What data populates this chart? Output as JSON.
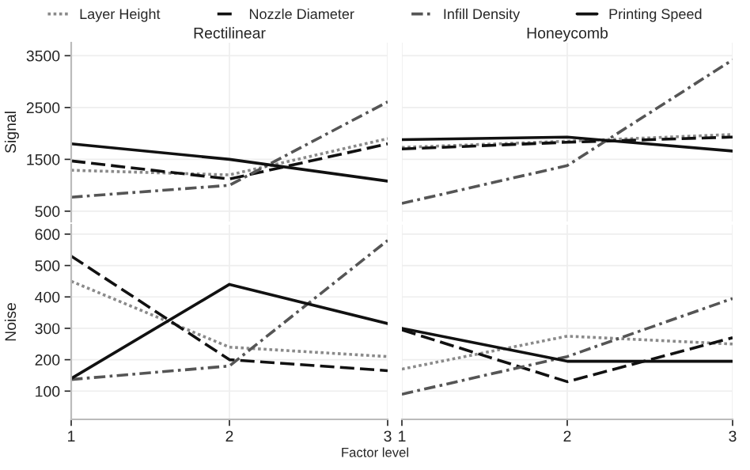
{
  "chart_data": [
    {
      "type": "line",
      "title": "Rectilinear",
      "ylabel": "Signal",
      "x": [
        1,
        2,
        3
      ],
      "xlim": [
        1,
        3
      ],
      "xticks": [
        1,
        2,
        3
      ],
      "ylim": [
        300,
        3750
      ],
      "yticks": [
        500,
        1500,
        2500,
        3500
      ],
      "grid": true,
      "legend": "top",
      "tick_labels": "y",
      "series": [
        {
          "name": "Layer Height",
          "color": "#8a8a8a",
          "line_style": "dotted",
          "values": [
            1290,
            1200,
            1900
          ]
        },
        {
          "name": "Nozzle Diameter",
          "color": "#111111",
          "line_style": "dashed",
          "values": [
            1470,
            1120,
            1800
          ]
        },
        {
          "name": "Infill Density",
          "color": "#555555",
          "line_style": "dashdot",
          "values": [
            770,
            1000,
            2610
          ]
        },
        {
          "name": "Printing Speed",
          "color": "#111111",
          "line_style": "solid",
          "values": [
            1800,
            1500,
            1080
          ]
        }
      ]
    },
    {
      "type": "line",
      "title": "Honeycomb",
      "x": [
        1,
        2,
        3
      ],
      "xlim": [
        1,
        3
      ],
      "xticks": [
        1,
        2,
        3
      ],
      "ylim": [
        300,
        3750
      ],
      "yticks": [
        500,
        1500,
        2500,
        3500
      ],
      "grid": true,
      "tick_labels": false,
      "series": [
        {
          "color": "#8a8a8a",
          "line_style": "dotted",
          "values": [
            1730,
            1850,
            1980
          ]
        },
        {
          "color": "#111111",
          "line_style": "dashed",
          "values": [
            1700,
            1830,
            1930
          ]
        },
        {
          "color": "#555555",
          "line_style": "dashdot",
          "values": [
            650,
            1380,
            3420
          ]
        },
        {
          "color": "#111111",
          "line_style": "solid",
          "values": [
            1880,
            1930,
            1660
          ]
        }
      ]
    },
    {
      "type": "line",
      "ylabel": "Noise",
      "xlabel": "Factor level",
      "x": [
        1,
        2,
        3
      ],
      "xlim": [
        1,
        3
      ],
      "xticks": [
        1,
        2,
        3
      ],
      "ylim": [
        10,
        630
      ],
      "yticks": [
        100,
        200,
        300,
        400,
        500,
        600
      ],
      "grid": true,
      "series": [
        {
          "color": "#8a8a8a",
          "line_style": "dotted",
          "values": [
            450,
            240,
            210
          ]
        },
        {
          "color": "#111111",
          "line_style": "dashed",
          "values": [
            530,
            200,
            165
          ]
        },
        {
          "color": "#555555",
          "line_style": "dashdot",
          "values": [
            137,
            180,
            580
          ]
        },
        {
          "color": "#111111",
          "line_style": "solid",
          "values": [
            140,
            440,
            315
          ]
        }
      ]
    },
    {
      "type": "line",
      "x": [
        1,
        2,
        3
      ],
      "xlim": [
        1,
        3
      ],
      "xticks": [
        1,
        2,
        3
      ],
      "ylim": [
        10,
        630
      ],
      "yticks": [
        100,
        200,
        300,
        400,
        500,
        600
      ],
      "grid": true,
      "tick_labels": "x",
      "series": [
        {
          "color": "#8a8a8a",
          "line_style": "dotted",
          "values": [
            170,
            275,
            250
          ]
        },
        {
          "color": "#111111",
          "line_style": "dashed",
          "values": [
            295,
            130,
            270
          ]
        },
        {
          "color": "#555555",
          "line_style": "dashdot",
          "values": [
            90,
            210,
            395
          ]
        },
        {
          "color": "#111111",
          "line_style": "solid",
          "values": [
            300,
            195,
            195
          ]
        }
      ]
    }
  ]
}
